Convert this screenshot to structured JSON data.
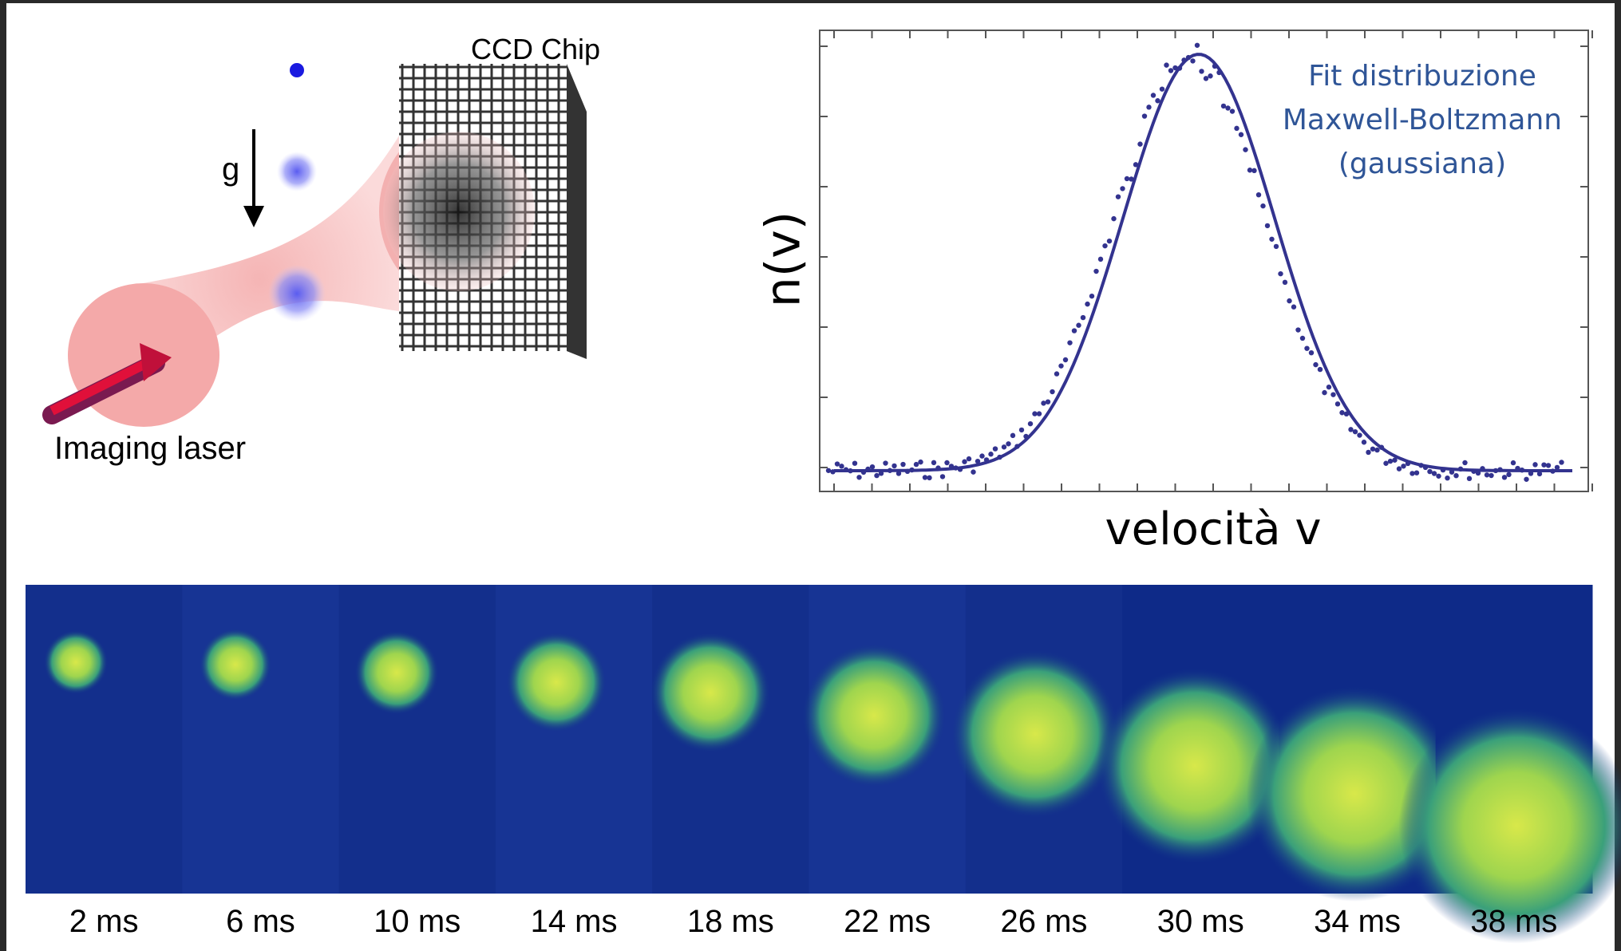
{
  "diagram": {
    "ccd_label": "CCD Chip",
    "gravity_label": "g",
    "laser_label": "Imaging laser"
  },
  "plot": {
    "y_label": "n(v)",
    "x_label": "velocità v",
    "legend": [
      "Fit distribuzione",
      "Maxwell-Boltzmann",
      "(gaussiana)"
    ]
  },
  "strip": {
    "labels": [
      "2 ms",
      "6 ms",
      "10 ms",
      "14 ms",
      "18 ms",
      "22 ms",
      "26 ms",
      "30 ms",
      "34 ms",
      "38 ms"
    ]
  }
}
